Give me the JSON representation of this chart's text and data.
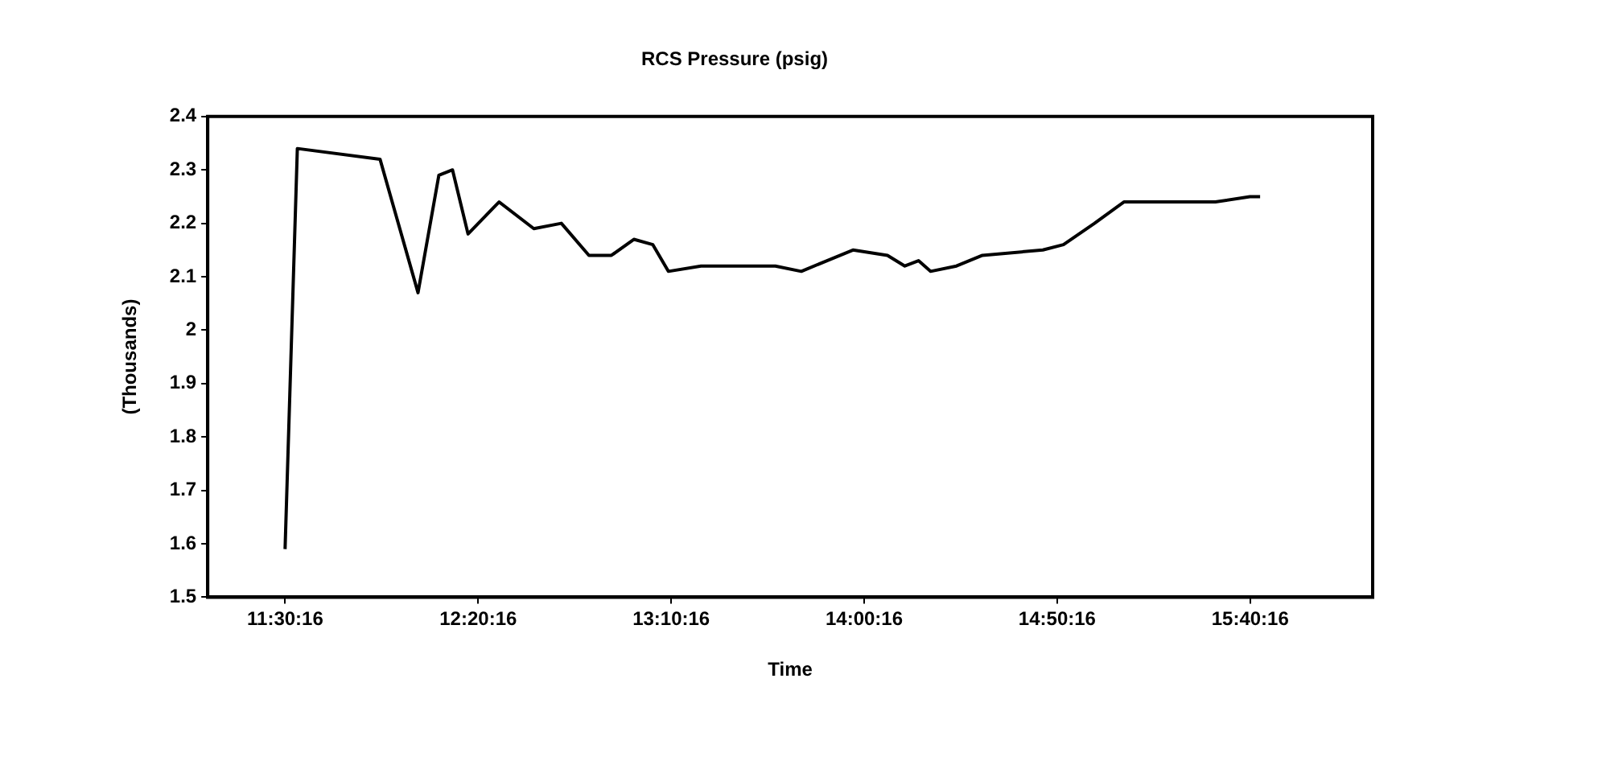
{
  "chart_data": {
    "type": "line",
    "title": "RCS Pressure (psig)",
    "xlabel": "Time",
    "ylabel": "(Thousands)",
    "x": [
      11.504,
      11.557,
      11.914,
      12.078,
      12.168,
      12.227,
      12.294,
      12.428,
      12.578,
      12.697,
      12.816,
      12.913,
      13.01,
      13.092,
      13.159,
      13.3,
      13.621,
      13.733,
      13.844,
      13.956,
      14.105,
      14.18,
      14.239,
      14.291,
      14.403,
      14.515,
      14.776,
      14.865,
      14.999,
      15.126,
      15.521,
      15.67,
      15.714
    ],
    "series": [
      {
        "color": "#000000",
        "values": [
          1.59,
          2.34,
          2.32,
          2.07,
          2.29,
          2.3,
          2.18,
          2.24,
          2.19,
          2.2,
          2.14,
          2.14,
          2.17,
          2.16,
          2.11,
          2.12,
          2.12,
          2.11,
          2.13,
          2.15,
          2.14,
          2.12,
          2.13,
          2.11,
          2.12,
          2.14,
          2.15,
          2.16,
          2.2,
          2.24,
          2.24,
          2.25,
          2.25
        ]
      }
    ],
    "xlim": [
      11.17,
      16.2
    ],
    "xticks": [
      {
        "value": 11.5044,
        "label": "11:30:16"
      },
      {
        "value": 12.3378,
        "label": "12:20:16"
      },
      {
        "value": 13.1711,
        "label": "13:10:16"
      },
      {
        "value": 14.0044,
        "label": "14:00:16"
      },
      {
        "value": 14.8378,
        "label": "14:50:16"
      },
      {
        "value": 15.6711,
        "label": "15:40:16"
      }
    ],
    "ylim": [
      1.5,
      2.4
    ],
    "yticks": [
      1.5,
      1.6,
      1.7,
      1.8,
      1.9,
      2,
      2.1,
      2.2,
      2.3,
      2.4
    ],
    "grid": false,
    "legend": false,
    "marker": "none",
    "line_style": "solid"
  }
}
